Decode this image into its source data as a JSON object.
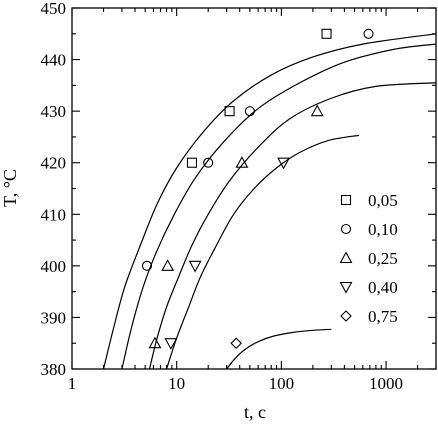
{
  "chart_data": {
    "type": "scatter",
    "title": "",
    "xlabel": "t, c",
    "ylabel": "T, °C",
    "xscale": "log",
    "xlim": [
      1,
      3000
    ],
    "ylim": [
      380,
      450
    ],
    "x_ticks": [
      1,
      10,
      100,
      1000
    ],
    "x_tick_labels": [
      "1",
      "10",
      "100",
      "1000"
    ],
    "y_ticks": [
      380,
      390,
      400,
      410,
      420,
      430,
      440,
      450
    ],
    "y_tick_labels": [
      "380",
      "390",
      "400",
      "410",
      "420",
      "430",
      "440",
      "450"
    ],
    "grid": false,
    "legend": {
      "position": "right-middle"
    },
    "series": [
      {
        "name": "0,05",
        "marker": "square",
        "points": [
          [
            14,
            420
          ],
          [
            32,
            430
          ],
          [
            270,
            445
          ]
        ],
        "curve": [
          [
            2,
            380
          ],
          [
            2.5,
            388
          ],
          [
            3.2,
            396
          ],
          [
            4.5,
            404
          ],
          [
            6.5,
            412
          ],
          [
            10,
            419
          ],
          [
            18,
            426
          ],
          [
            35,
            432
          ],
          [
            80,
            437
          ],
          [
            200,
            440.5
          ],
          [
            600,
            443
          ],
          [
            3000,
            445
          ]
        ]
      },
      {
        "name": "0,10",
        "marker": "circle",
        "points": [
          [
            5.2,
            400
          ],
          [
            20,
            420
          ],
          [
            50,
            430
          ],
          [
            680,
            445
          ]
        ],
        "curve": [
          [
            3,
            380
          ],
          [
            3.7,
            388
          ],
          [
            4.8,
            396
          ],
          [
            6.5,
            403
          ],
          [
            9.5,
            410
          ],
          [
            15,
            417
          ],
          [
            28,
            424
          ],
          [
            60,
            430.5
          ],
          [
            150,
            435.5
          ],
          [
            400,
            439.5
          ],
          [
            1200,
            442
          ],
          [
            3000,
            443
          ]
        ]
      },
      {
        "name": "0,25",
        "marker": "triangle-up",
        "points": [
          [
            6.2,
            385
          ],
          [
            8.2,
            400
          ],
          [
            42,
            420
          ],
          [
            220,
            430
          ]
        ],
        "curve": [
          [
            5.5,
            380
          ],
          [
            6.5,
            386
          ],
          [
            8,
            392
          ],
          [
            10.5,
            398
          ],
          [
            14,
            404
          ],
          [
            20,
            410
          ],
          [
            32,
            416.5
          ],
          [
            60,
            423
          ],
          [
            120,
            428.5
          ],
          [
            300,
            432.5
          ],
          [
            800,
            434.8
          ],
          [
            3000,
            435.5
          ]
        ]
      },
      {
        "name": "0,40",
        "marker": "triangle-down",
        "points": [
          [
            8.8,
            385
          ],
          [
            15,
            400
          ],
          [
            105,
            420
          ]
        ],
        "curve": [
          [
            8,
            380
          ],
          [
            10,
            386
          ],
          [
            13,
            392
          ],
          [
            17,
            398
          ],
          [
            24,
            404
          ],
          [
            35,
            410
          ],
          [
            55,
            415
          ],
          [
            90,
            419
          ],
          [
            150,
            422
          ],
          [
            280,
            424.3
          ],
          [
            550,
            425.3
          ]
        ]
      },
      {
        "name": "0,75",
        "marker": "diamond",
        "points": [
          [
            37,
            385
          ]
        ],
        "curve": [
          [
            30,
            380
          ],
          [
            36,
            382
          ],
          [
            45,
            383.8
          ],
          [
            60,
            385.3
          ],
          [
            85,
            386.4
          ],
          [
            130,
            387.1
          ],
          [
            200,
            387.5
          ],
          [
            300,
            387.7
          ]
        ]
      }
    ]
  }
}
